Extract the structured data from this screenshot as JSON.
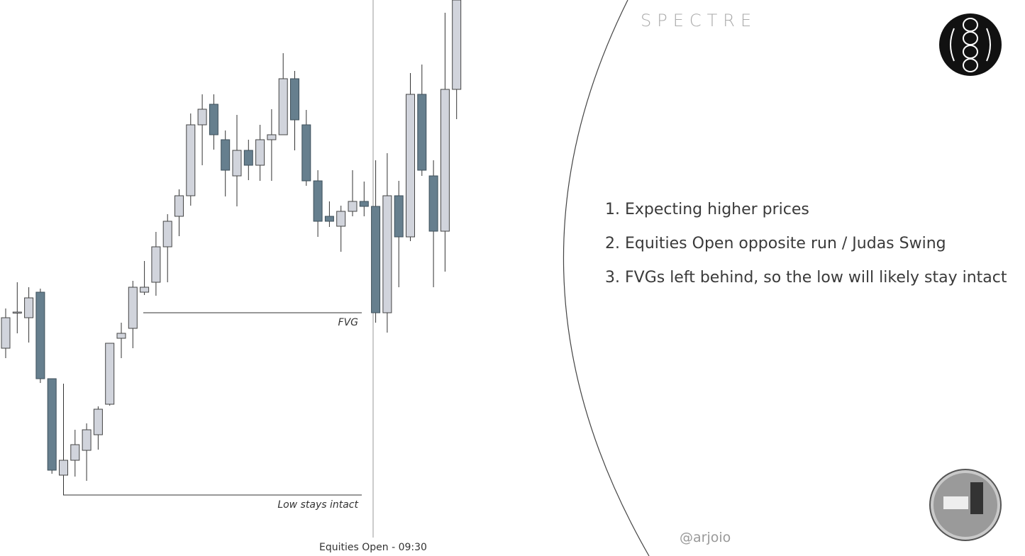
{
  "brand": "SPECTRE",
  "handle": "@arjoio",
  "points": [
    "1. Expecting higher prices",
    "2. Equities Open opposite run / Judas Swing",
    "3. FVGs left behind, so the low will likely stay intact"
  ],
  "chart_data": {
    "type": "candlestick",
    "up_color": "#d1d4dc",
    "down_color": "#667f8e",
    "ylim": [
      0,
      784
    ],
    "open": [
      293,
      344,
      336,
      372,
      250,
      114,
      135,
      149,
      171,
      214,
      307,
      321,
      372,
      386,
      436,
      479,
      508,
      608,
      637,
      587,
      536,
      572,
      551,
      587,
      594,
      673,
      608,
      529,
      479,
      465,
      486,
      500,
      493,
      343,
      508,
      450,
      651,
      536,
      458,
      658
    ],
    "high": [
      349,
      386,
      379,
      377,
      250,
      243,
      178,
      187,
      211,
      300,
      329,
      388,
      416,
      457,
      482,
      517,
      624,
      651,
      651,
      600,
      622,
      587,
      608,
      630,
      709,
      684,
      629,
      544,
      500,
      494,
      544,
      528,
      558,
      568,
      529,
      681,
      693,
      558,
      766,
      784
    ],
    "low": [
      279,
      314,
      301,
      244,
      116,
      86,
      112,
      106,
      150,
      212,
      279,
      293,
      368,
      367,
      386,
      451,
      494,
      551,
      573,
      507,
      493,
      530,
      529,
      529,
      594,
      572,
      522,
      450,
      464,
      429,
      479,
      479,
      329,
      315,
      379,
      444,
      536,
      379,
      401,
      616
    ],
    "close": [
      336,
      344,
      364,
      250,
      121,
      135,
      157,
      178,
      207,
      300,
      314,
      379,
      379,
      436,
      472,
      508,
      608,
      630,
      594,
      544,
      572,
      551,
      587,
      594,
      673,
      615,
      529,
      472,
      472,
      486,
      500,
      493,
      343,
      508,
      450,
      651,
      544,
      458,
      658,
      784
    ],
    "annotations": [
      {
        "text": "FVG",
        "value": 343
      },
      {
        "text": "Low stays intact",
        "value": 86
      }
    ],
    "session_label": "Equities Open - 09:30"
  }
}
